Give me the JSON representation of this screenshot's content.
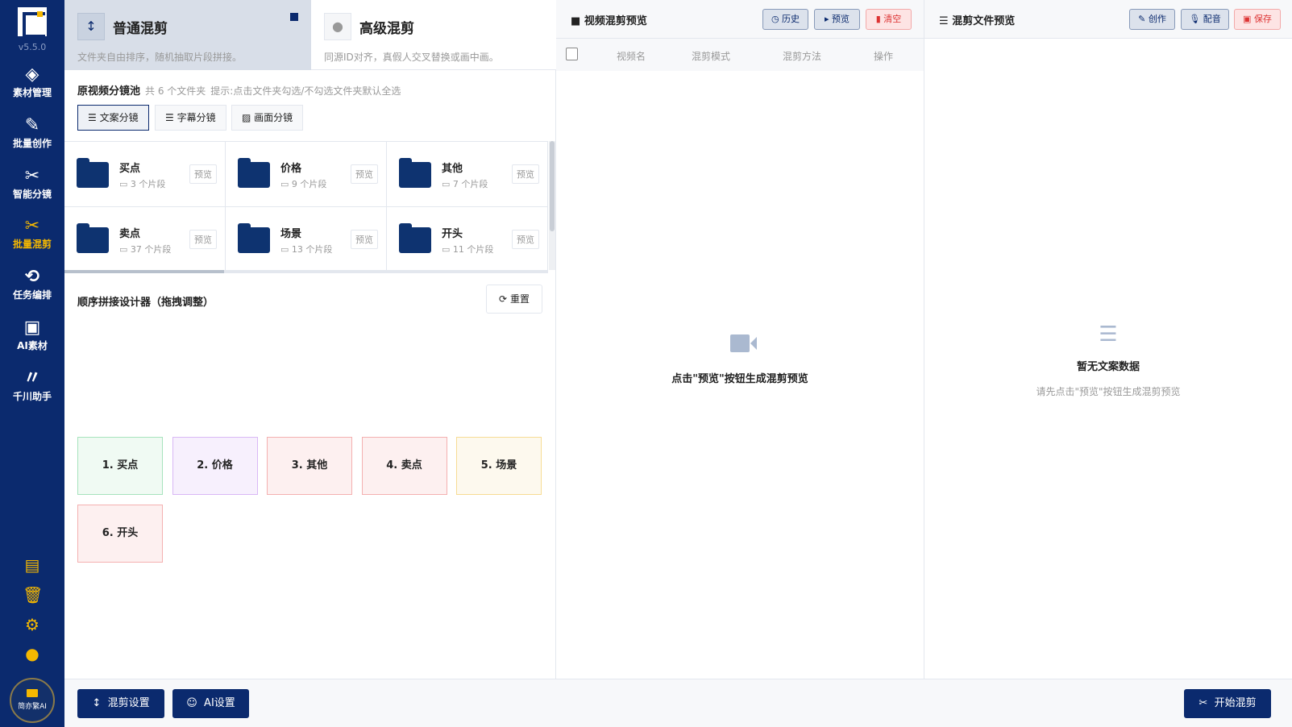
{
  "app": {
    "version": "v5.5.0",
    "brand": "简亦繁AI"
  },
  "sidebar": {
    "items": [
      {
        "label": "素材管理",
        "icon": "layers-icon"
      },
      {
        "label": "批量创作",
        "icon": "pencil-icon"
      },
      {
        "label": "智能分镜",
        "icon": "split-icon"
      },
      {
        "label": "批量混剪",
        "icon": "scissors-icon",
        "active": true
      },
      {
        "label": "任务编排",
        "icon": "cycle-icon"
      },
      {
        "label": "AI素材",
        "icon": "image-icon"
      },
      {
        "label": "千川助手",
        "icon": "qianchuan-icon"
      }
    ],
    "bottom_icons": [
      "list-icon",
      "trash-icon",
      "gear-icon",
      "user-icon"
    ]
  },
  "modes": [
    {
      "title": "普通混剪",
      "desc": "文件夹自由排序，随机抽取片段拼接。",
      "selected": true
    },
    {
      "title": "高级混剪",
      "desc": "同源ID对齐，真假人交叉替换或画中画。"
    }
  ],
  "pool": {
    "title": "原视频分镜池",
    "count": "共 6 个文件夹",
    "hint": "提示:点击文件夹勾选/不勾选文件夹默认全选",
    "segments": [
      "文案分镜",
      "字幕分镜",
      "画面分镜"
    ],
    "folders": [
      {
        "name": "买点",
        "count": "3 个片段"
      },
      {
        "name": "价格",
        "count": "9 个片段"
      },
      {
        "name": "其他",
        "count": "7 个片段"
      },
      {
        "name": "卖点",
        "count": "37 个片段"
      },
      {
        "name": "场景",
        "count": "13 个片段"
      },
      {
        "name": "开头",
        "count": "11 个片段"
      }
    ],
    "preview_label": "预览"
  },
  "sequence": {
    "title": "顺序拼接设计器（拖拽调整）",
    "reset": "重置",
    "blocks": [
      {
        "label": "1. 买点",
        "color": "#a6e3bd",
        "bg": "#f0faf3"
      },
      {
        "label": "2. 价格",
        "color": "#d9b8f5",
        "bg": "#f7f0fd"
      },
      {
        "label": "3. 其他",
        "color": "#f4b0b0",
        "bg": "#fdf0f0"
      },
      {
        "label": "4. 卖点",
        "color": "#f4b0b0",
        "bg": "#fdf0f0"
      },
      {
        "label": "5. 场景",
        "color": "#f7dc94",
        "bg": "#fdf9ee"
      },
      {
        "label": "6. 开头",
        "color": "#f4b0b0",
        "bg": "#fdf0f0"
      }
    ]
  },
  "preview": {
    "title": "视频混剪预览",
    "buttons": [
      "历史",
      "预览",
      "清空"
    ],
    "columns": [
      "视频名",
      "混剪模式",
      "混剪方法",
      "操作"
    ],
    "empty": "点击\"预览\"按钮生成混剪预览"
  },
  "filepreview": {
    "title": "混剪文件预览",
    "buttons": [
      "创作",
      "配音",
      "保存"
    ],
    "empty_title": "暂无文案数据",
    "empty_desc": "请先点击\"预览\"按钮生成混剪预览"
  },
  "footer": {
    "mix_settings": "混剪设置",
    "ai_settings": "AI设置",
    "start": "开始混剪"
  }
}
